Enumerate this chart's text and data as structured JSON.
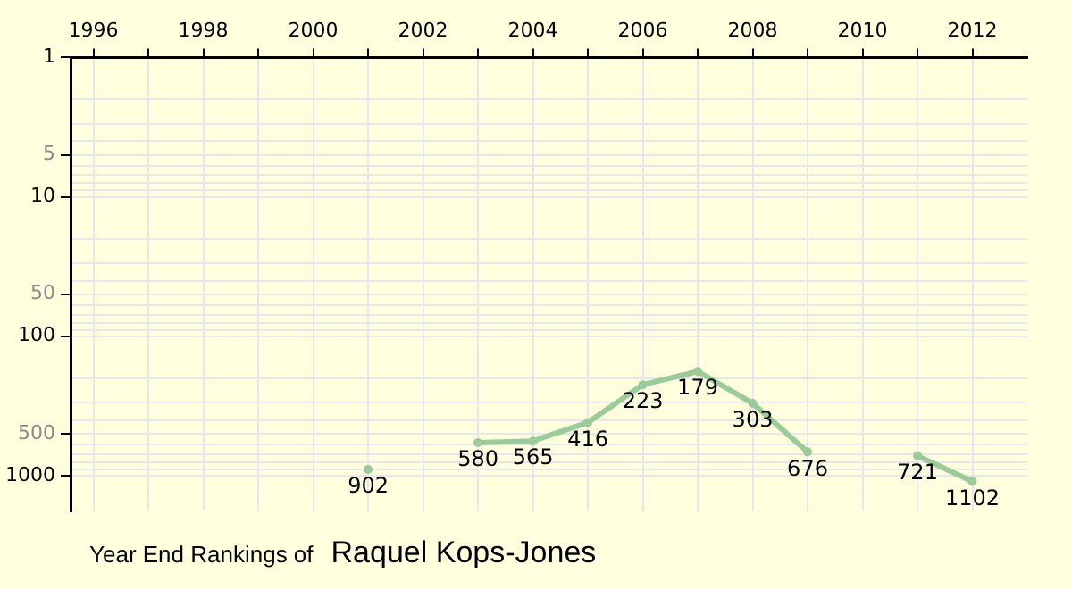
{
  "chart_data": {
    "type": "line",
    "title": "Year End Rankings of",
    "subtitle": "Raquel Kops-Jones",
    "x": [
      2001,
      2002,
      2003,
      2004,
      2005,
      2006,
      2007,
      2008,
      2009,
      2010,
      2011,
      2012
    ],
    "series": [
      {
        "color": "#99cc99",
        "values": [
          902,
          null,
          580,
          565,
          416,
          223,
          179,
          303,
          676,
          null,
          721,
          1102
        ]
      }
    ],
    "xlim": [
      1995.6,
      2013
    ],
    "xticks": [
      1996,
      {
        "value": 1997,
        "label": null
      },
      1998,
      {
        "value": 1999,
        "label": null
      },
      2000,
      {
        "value": 2001,
        "label": null
      },
      2002,
      {
        "value": 2003,
        "label": null
      },
      2004,
      {
        "value": 2005,
        "label": null
      },
      2006,
      {
        "value": 2007,
        "label": null
      },
      2008,
      {
        "value": 2009,
        "label": null
      },
      2010,
      {
        "value": 2011,
        "label": null
      },
      2012
    ],
    "ylim": [
      1800,
      1
    ],
    "yticks": [
      1,
      {
        "value": 2,
        "label": null
      },
      {
        "value": 3,
        "label": null
      },
      {
        "value": 4,
        "label": null
      },
      5,
      {
        "value": 6,
        "label": null
      },
      {
        "value": 7,
        "label": null
      },
      {
        "value": 8,
        "label": null
      },
      {
        "value": 9,
        "label": null
      },
      10,
      {
        "value": 20,
        "label": null
      },
      {
        "value": 30,
        "label": null
      },
      {
        "value": 40,
        "label": null
      },
      50,
      {
        "value": 60,
        "label": null
      },
      {
        "value": 70,
        "label": null
      },
      {
        "value": 80,
        "label": null
      },
      {
        "value": 90,
        "label": null
      },
      100,
      {
        "value": 200,
        "label": null
      },
      {
        "value": 300,
        "label": null
      },
      {
        "value": 400,
        "label": null
      },
      500,
      {
        "value": 600,
        "label": null
      },
      {
        "value": 700,
        "label": null
      },
      {
        "value": 800,
        "label": null
      },
      {
        "value": 900,
        "label": null
      },
      1000
    ],
    "log": true,
    "grid": true,
    "marker": "circle",
    "line_style": "solid",
    "data_labels": true
  }
}
